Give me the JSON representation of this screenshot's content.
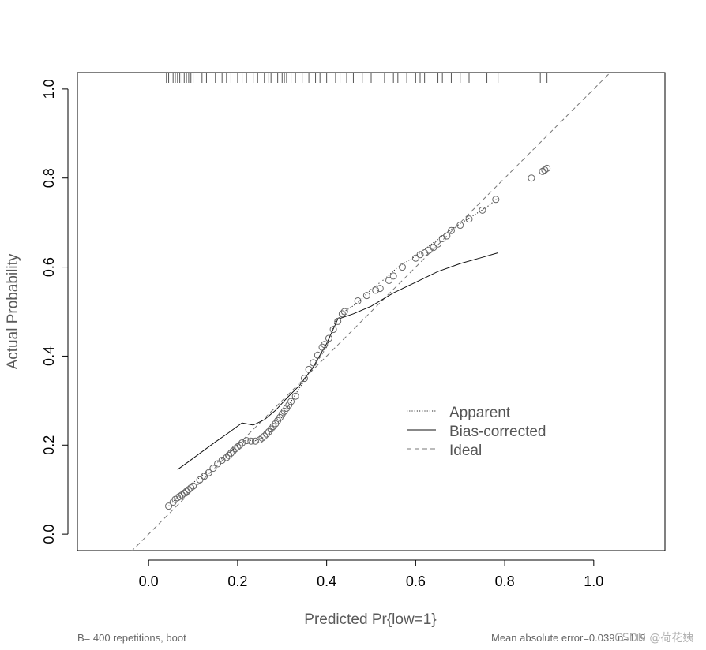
{
  "chart_data": {
    "type": "line",
    "title": "",
    "xlabel": "Predicted Pr{low=1}",
    "ylabel": "Actual Probability",
    "xlim": [
      -0.16,
      1.16
    ],
    "ylim": [
      -0.037,
      1.037
    ],
    "x_ticks": [
      0.0,
      0.2,
      0.4,
      0.6,
      0.8,
      1.0
    ],
    "y_ticks": [
      0.0,
      0.2,
      0.4,
      0.6,
      0.8,
      1.0
    ],
    "x_tick_labels": [
      "0.0",
      "0.2",
      "0.4",
      "0.6",
      "0.8",
      "1.0"
    ],
    "y_tick_labels": [
      "0.0",
      "0.2",
      "0.4",
      "0.6",
      "0.8",
      "1.0"
    ],
    "rug_x": [
      0.04,
      0.045,
      0.055,
      0.06,
      0.065,
      0.07,
      0.075,
      0.08,
      0.085,
      0.09,
      0.095,
      0.1,
      0.12,
      0.13,
      0.15,
      0.165,
      0.175,
      0.185,
      0.2,
      0.21,
      0.22,
      0.235,
      0.245,
      0.26,
      0.27,
      0.275,
      0.29,
      0.3,
      0.305,
      0.31,
      0.32,
      0.33,
      0.345,
      0.36,
      0.375,
      0.385,
      0.4,
      0.42,
      0.43,
      0.445,
      0.46,
      0.48,
      0.5,
      0.53,
      0.55,
      0.56,
      0.58,
      0.6,
      0.61,
      0.62,
      0.65,
      0.66,
      0.68,
      0.7,
      0.72,
      0.76,
      0.785,
      0.88,
      0.895
    ],
    "series": [
      {
        "name": "Apparent",
        "style": "dotted",
        "x": [
          0.045,
          0.06,
          0.075,
          0.1,
          0.125,
          0.15,
          0.175,
          0.2,
          0.215,
          0.225,
          0.24,
          0.26,
          0.28,
          0.3,
          0.32,
          0.34,
          0.36,
          0.38,
          0.4,
          0.42,
          0.44,
          0.47,
          0.5,
          0.53,
          0.56,
          0.6,
          0.64,
          0.68,
          0.72,
          0.76,
          0.785
        ],
        "y": [
          0.063,
          0.078,
          0.094,
          0.115,
          0.136,
          0.157,
          0.178,
          0.2,
          0.21,
          0.211,
          0.21,
          0.218,
          0.235,
          0.264,
          0.298,
          0.33,
          0.36,
          0.39,
          0.42,
          0.478,
          0.5,
          0.52,
          0.55,
          0.573,
          0.6,
          0.625,
          0.655,
          0.685,
          0.71,
          0.735,
          0.755
        ]
      },
      {
        "name": "Bias-corrected",
        "style": "solid",
        "x": [
          0.065,
          0.09,
          0.12,
          0.15,
          0.18,
          0.21,
          0.235,
          0.26,
          0.285,
          0.31,
          0.34,
          0.37,
          0.4,
          0.425,
          0.46,
          0.5,
          0.55,
          0.6,
          0.65,
          0.7,
          0.75,
          0.785
        ],
        "y": [
          0.145,
          0.163,
          0.185,
          0.207,
          0.228,
          0.25,
          0.245,
          0.257,
          0.278,
          0.305,
          0.335,
          0.376,
          0.428,
          0.483,
          0.495,
          0.512,
          0.542,
          0.566,
          0.59,
          0.608,
          0.622,
          0.632
        ]
      },
      {
        "name": "Ideal",
        "style": "dashed",
        "x": [
          -0.04,
          1.04
        ],
        "y": [
          -0.04,
          1.04
        ]
      }
    ],
    "points_x": [
      0.045,
      0.055,
      0.06,
      0.065,
      0.07,
      0.075,
      0.08,
      0.085,
      0.09,
      0.095,
      0.1,
      0.115,
      0.125,
      0.135,
      0.145,
      0.155,
      0.165,
      0.175,
      0.18,
      0.185,
      0.19,
      0.195,
      0.2,
      0.205,
      0.21,
      0.22,
      0.23,
      0.24,
      0.25,
      0.255,
      0.26,
      0.265,
      0.27,
      0.275,
      0.28,
      0.285,
      0.29,
      0.295,
      0.3,
      0.305,
      0.31,
      0.315,
      0.32,
      0.33,
      0.35,
      0.36,
      0.37,
      0.38,
      0.39,
      0.395,
      0.405,
      0.415,
      0.425,
      0.435,
      0.44,
      0.47,
      0.49,
      0.51,
      0.52,
      0.54,
      0.55,
      0.57,
      0.6,
      0.61,
      0.62,
      0.63,
      0.64,
      0.65,
      0.66,
      0.67,
      0.68,
      0.7,
      0.72,
      0.75,
      0.78,
      0.86,
      0.885,
      0.89,
      0.895
    ],
    "points_y": [
      0.063,
      0.072,
      0.078,
      0.082,
      0.085,
      0.088,
      0.092,
      0.096,
      0.1,
      0.104,
      0.108,
      0.122,
      0.13,
      0.138,
      0.148,
      0.158,
      0.166,
      0.172,
      0.177,
      0.182,
      0.187,
      0.192,
      0.196,
      0.2,
      0.205,
      0.21,
      0.209,
      0.209,
      0.212,
      0.216,
      0.22,
      0.225,
      0.23,
      0.236,
      0.242,
      0.248,
      0.255,
      0.262,
      0.27,
      0.276,
      0.283,
      0.29,
      0.298,
      0.31,
      0.35,
      0.37,
      0.385,
      0.402,
      0.42,
      0.426,
      0.44,
      0.46,
      0.478,
      0.495,
      0.5,
      0.524,
      0.536,
      0.548,
      0.552,
      0.57,
      0.58,
      0.6,
      0.62,
      0.628,
      0.632,
      0.638,
      0.644,
      0.652,
      0.664,
      0.67,
      0.682,
      0.694,
      0.708,
      0.728,
      0.752,
      0.8,
      0.815,
      0.818,
      0.822
    ],
    "legend": {
      "position": "bottom-right",
      "entries": [
        {
          "label": "Apparent",
          "style": "dotted"
        },
        {
          "label": "Bias-corrected",
          "style": "solid"
        },
        {
          "label": "Ideal",
          "style": "dashed"
        }
      ]
    },
    "footer_left": "B= 400 repetitions, boot",
    "footer_right": "Mean absolute error=0.039 n=119"
  },
  "watermark": "CSDN @荷花姨",
  "colors": {
    "axis": "#000000",
    "apparent": "#222222",
    "bias_corrected": "#111111",
    "ideal": "#777777",
    "points": "#666666",
    "rug": "#555555"
  }
}
